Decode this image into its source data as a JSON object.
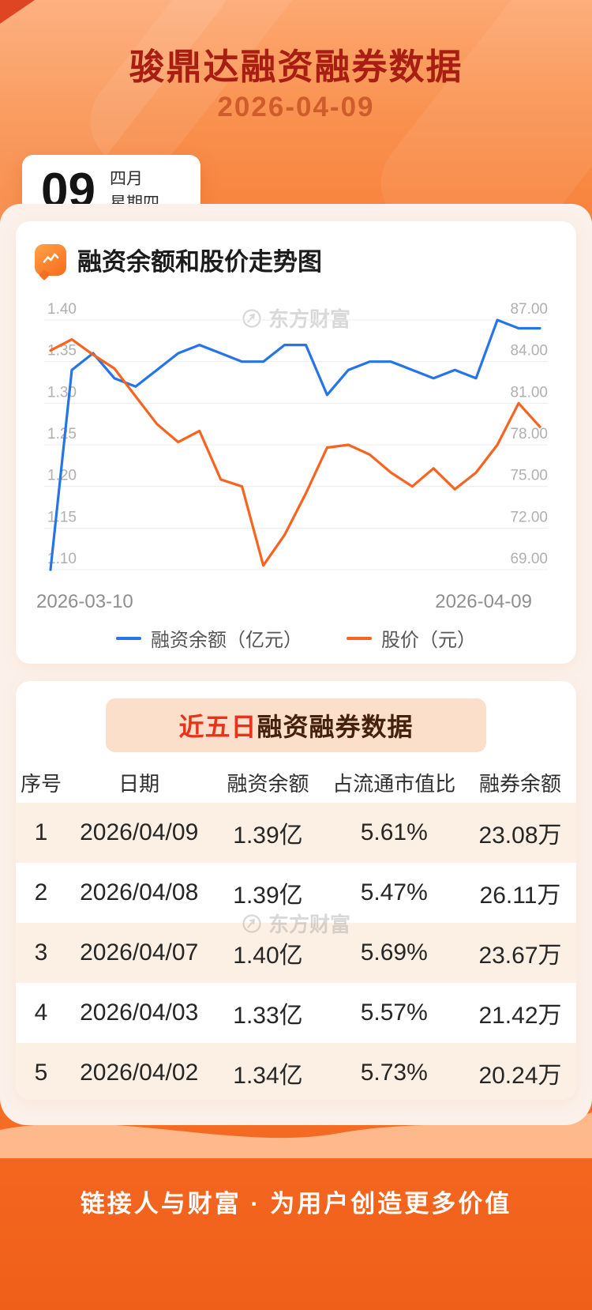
{
  "page": {
    "title": "骏鼎达融资融券数据",
    "date": "2026-04-09",
    "footer_slogan": "链接人与财富 · 为用户创造更多价值"
  },
  "date_card": {
    "day": "09",
    "month": "四月",
    "weekday": "星期四"
  },
  "chart_section": {
    "title": "融资余额和股价走势图",
    "watermark": "东方财富",
    "x_axis_start": "2026-03-10",
    "x_axis_end": "2026-04-09",
    "legend": [
      {
        "label": "融资余额（亿元）",
        "color": "#2574e8"
      },
      {
        "label": "股价（元）",
        "color": "#f8641f"
      }
    ]
  },
  "chart_data": {
    "type": "line",
    "title": "融资余额和股价走势图",
    "x_range": [
      "2026-03-10",
      "2026-04-09"
    ],
    "grid": true,
    "legend_position": "bottom",
    "left_axis": {
      "label": "融资余额（亿元）",
      "min": 1.1,
      "max": 1.4,
      "ticks": [
        1.4,
        1.35,
        1.3,
        1.25,
        1.2,
        1.15,
        1.1
      ]
    },
    "right_axis": {
      "label": "股价（元）",
      "min": 69.0,
      "max": 87.0,
      "ticks": [
        87.0,
        84.0,
        81.0,
        78.0,
        75.0,
        72.0,
        69.0
      ]
    },
    "series": [
      {
        "name": "融资余额（亿元）",
        "axis": "left",
        "color": "#2574e8",
        "values": [
          1.1,
          1.34,
          1.36,
          1.33,
          1.32,
          1.34,
          1.36,
          1.37,
          1.36,
          1.35,
          1.35,
          1.37,
          1.37,
          1.31,
          1.34,
          1.35,
          1.35,
          1.34,
          1.33,
          1.34,
          1.33,
          1.4,
          1.39,
          1.39
        ]
      },
      {
        "name": "股价（元）",
        "axis": "right",
        "color": "#f8641f",
        "values": [
          84.8,
          85.6,
          84.5,
          83.5,
          81.5,
          79.5,
          78.2,
          79.0,
          75.5,
          75.0,
          69.3,
          71.5,
          74.5,
          77.8,
          78.0,
          77.3,
          76.0,
          75.0,
          76.3,
          74.8,
          76.0,
          78.0,
          81.0,
          79.3
        ]
      }
    ]
  },
  "table_section": {
    "title_highlight": "近五日",
    "title_rest": "融资融券数据",
    "watermark": "东方财富",
    "columns": [
      "序号",
      "日期",
      "融资余额",
      "占流通市值比",
      "融券余额"
    ],
    "rows": [
      [
        "1",
        "2026/04/09",
        "1.39亿",
        "5.61%",
        "23.08万"
      ],
      [
        "2",
        "2026/04/08",
        "1.39亿",
        "5.47%",
        "26.11万"
      ],
      [
        "3",
        "2026/04/07",
        "1.40亿",
        "5.69%",
        "23.67万"
      ],
      [
        "4",
        "2026/04/03",
        "1.33亿",
        "5.57%",
        "21.42万"
      ],
      [
        "5",
        "2026/04/02",
        "1.34亿",
        "5.73%",
        "20.24万"
      ]
    ]
  },
  "colors": {
    "title_red": "#a91e12",
    "date_orange": "#cf5d2c",
    "blue_line": "#2574e8",
    "orange_line": "#f8641f",
    "highlight_red": "#e73418",
    "badge_bg": "#fbdfcb",
    "row_alt_bg": "#fcefe3",
    "footer_text": "#ffffff"
  }
}
